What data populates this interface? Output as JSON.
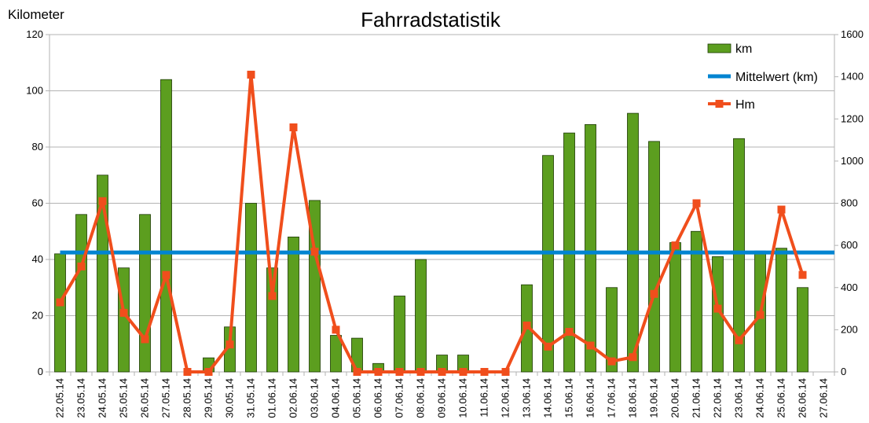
{
  "chart_data": {
    "type": "bar",
    "title": "Fahrradstatistik",
    "ylabel": "Kilometer",
    "y2label": "",
    "categories": [
      "22.05.14",
      "23.05.14",
      "24.05.14",
      "25.05.14",
      "26.05.14",
      "27.05.14",
      "28.05.14",
      "29.05.14",
      "30.05.14",
      "31.05.14",
      "01.06.14",
      "02.06.14",
      "03.06.14",
      "04.06.14",
      "05.06.14",
      "06.06.14",
      "07.06.14",
      "08.06.14",
      "09.06.14",
      "10.06.14",
      "11.06.14",
      "12.06.14",
      "13.06.14",
      "14.06.14",
      "15.06.14",
      "16.06.14",
      "17.06.14",
      "18.06.14",
      "19.06.14",
      "20.06.14",
      "21.06.14",
      "22.06.14",
      "23.06.14",
      "24.06.14",
      "25.06.14",
      "26.06.14",
      "27.06.14"
    ],
    "ylim": [
      0,
      120
    ],
    "y2lim": [
      0,
      1600
    ],
    "yticks": [
      "0",
      "20",
      "40",
      "60",
      "80",
      "100",
      "120"
    ],
    "y2ticks": [
      "0",
      "200",
      "400",
      "600",
      "800",
      "1000",
      "1200",
      "1400",
      "1600"
    ],
    "grid": true,
    "legend_position": "top-right",
    "colors": {
      "km": "#5c9e1f",
      "mittelwert": "#0084d1",
      "hm": "#f04e1c"
    },
    "series": [
      {
        "name": "km",
        "type": "bar",
        "axis": "left",
        "values": [
          42,
          56,
          70,
          37,
          56,
          104,
          0,
          5,
          16,
          60,
          37,
          48,
          61,
          13,
          12,
          3,
          27,
          40,
          6,
          6,
          0,
          0,
          31,
          77,
          85,
          88,
          30,
          92,
          82,
          46,
          50,
          41,
          83,
          43,
          44,
          30,
          null
        ]
      },
      {
        "name": "Mittelwert (km)",
        "type": "line",
        "axis": "left",
        "values": [
          42.5,
          42.5,
          42.5,
          42.5,
          42.5,
          42.5,
          42.5,
          42.5,
          42.5,
          42.5,
          42.5,
          42.5,
          42.5,
          42.5,
          42.5,
          42.5,
          42.5,
          42.5,
          42.5,
          42.5,
          42.5,
          42.5,
          42.5,
          42.5,
          42.5,
          42.5,
          42.5,
          42.5,
          42.5,
          42.5,
          42.5,
          42.5,
          42.5,
          42.5,
          42.5,
          42.5,
          42.5
        ]
      },
      {
        "name": "Hm",
        "type": "line-marker",
        "axis": "right",
        "values": [
          330,
          500,
          810,
          280,
          155,
          460,
          0,
          0,
          130,
          1410,
          360,
          1160,
          570,
          200,
          0,
          0,
          0,
          0,
          0,
          0,
          0,
          0,
          220,
          120,
          190,
          125,
          50,
          70,
          370,
          600,
          800,
          300,
          150,
          270,
          770,
          460,
          null
        ]
      }
    ]
  }
}
